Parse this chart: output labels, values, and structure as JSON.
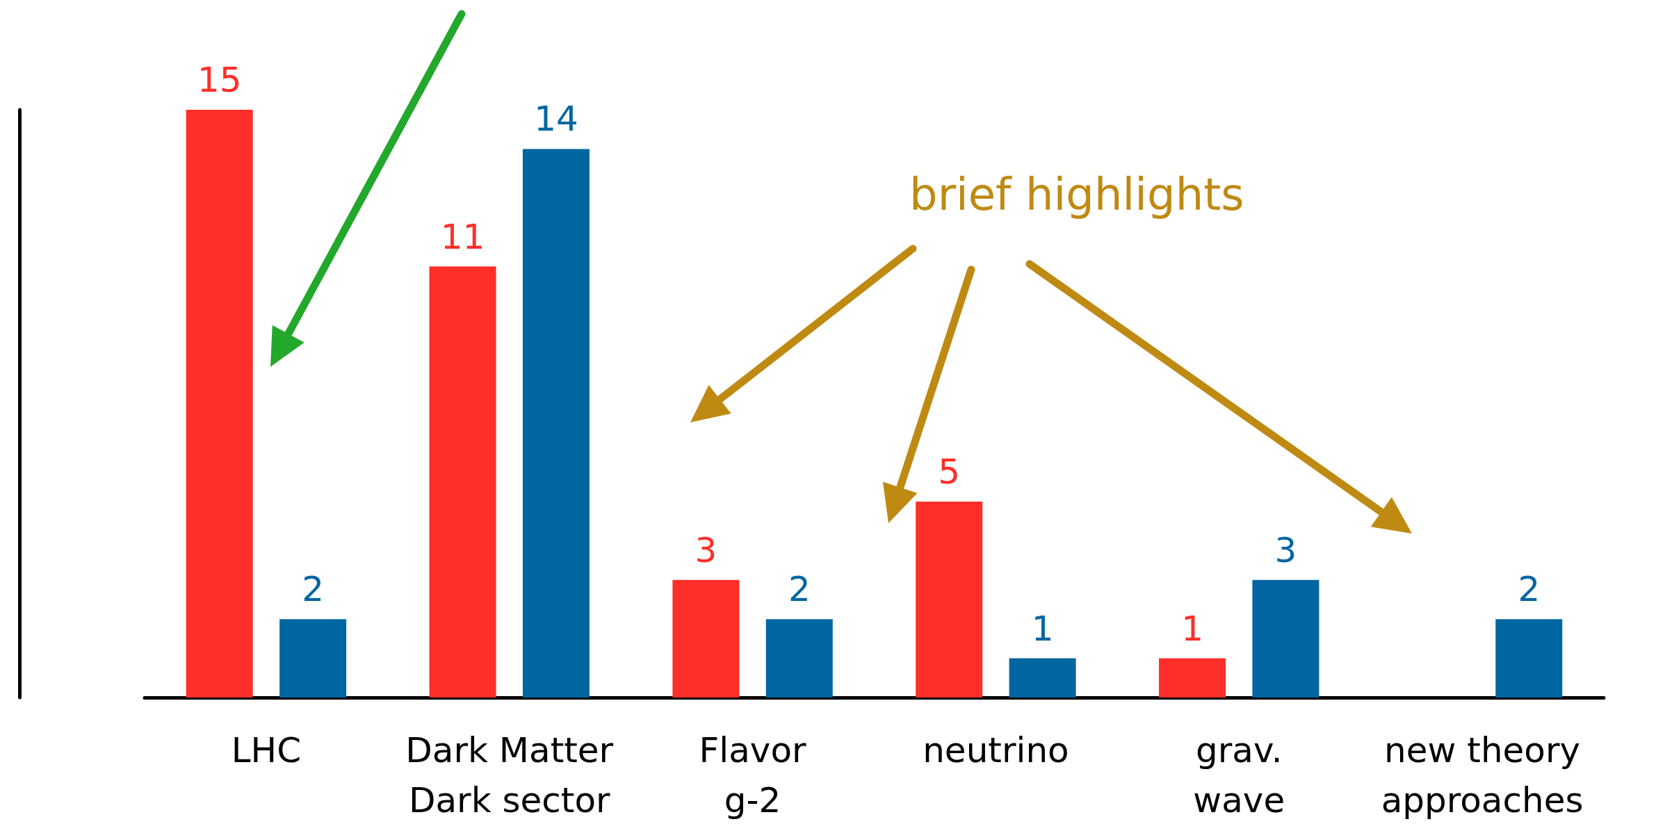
{
  "chart_data": {
    "type": "bar",
    "categories": [
      "LHC",
      "Dark Matter\nDark sector",
      "Flavor\ng-2",
      "neutrino",
      "grav.\nwave",
      "new theory\napproaches"
    ],
    "series": [
      {
        "color": "#ff2e28",
        "values": [
          15,
          11,
          3,
          5,
          1,
          null
        ]
      },
      {
        "color": "#0066a1",
        "values": [
          2,
          14,
          2,
          1,
          3,
          2
        ]
      }
    ],
    "data_labels": true,
    "tick_labels": "x",
    "annotations": [
      "brief highlights"
    ]
  }
}
